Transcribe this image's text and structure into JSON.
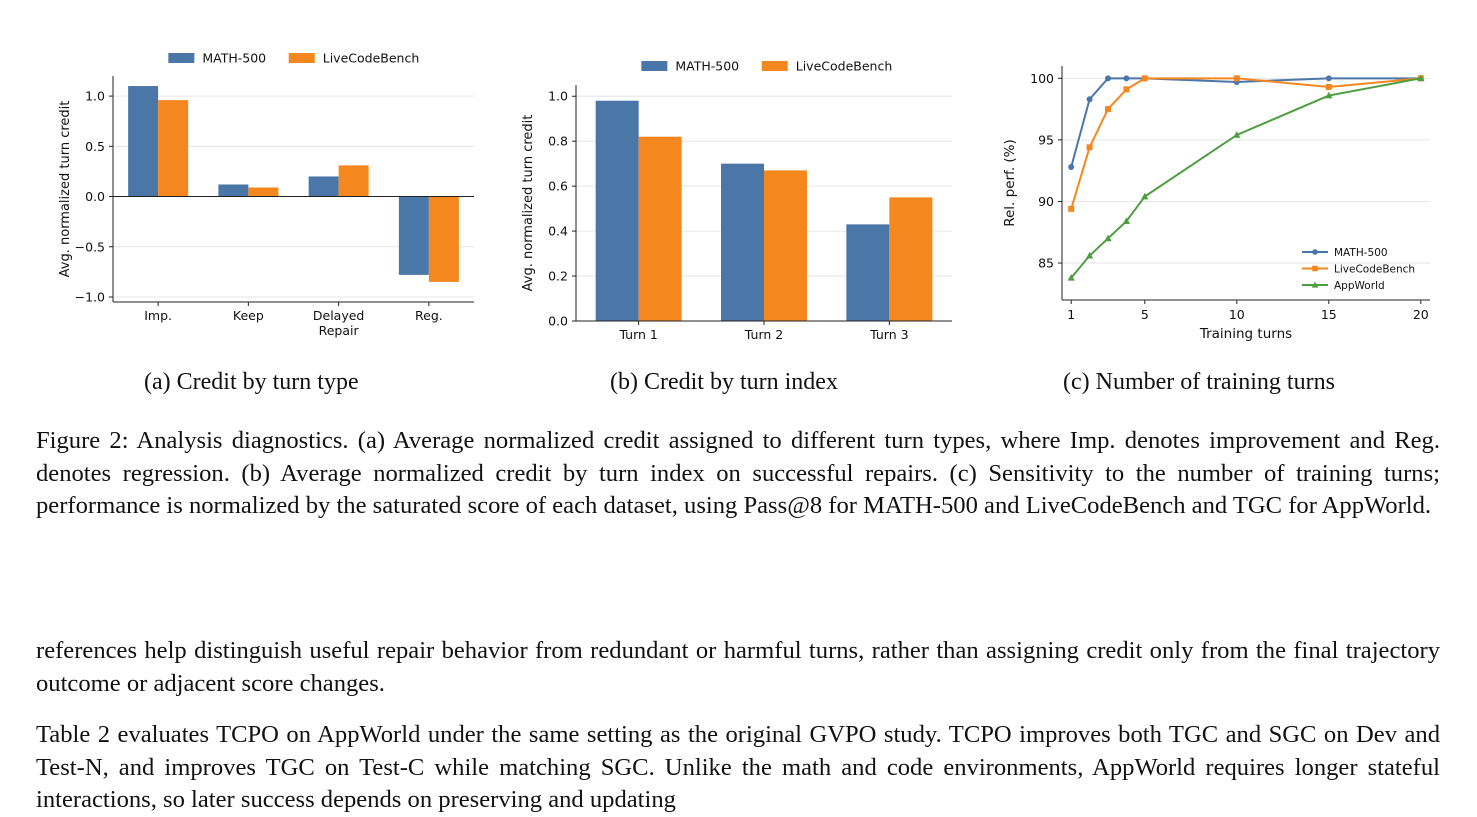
{
  "colors": {
    "math500": "#4a77a8",
    "livecodebench": "#f5871f",
    "appworld": "#4d9e3f",
    "grid": "#e6e6e6",
    "axis": "#222222"
  },
  "figure": {
    "caption": "Figure 2: Analysis diagnostics. (a) Average normalized credit assigned to different turn types, where Imp. denotes improvement and Reg. denotes regression. (b) Average normalized credit by turn index on successful repairs. (c) Sensitivity to the number of training turns; performance is normalized by the saturated score of each dataset, using Pass@8 for MATH-500 and LiveCodeBench and TGC for AppWorld.",
    "subcaptions": [
      "(a) Credit by turn type",
      "(b) Credit by turn index",
      "(c) Number of training turns"
    ]
  },
  "chart_data": [
    {
      "type": "bar",
      "categories": [
        "Imp.",
        "Keep",
        "Delayed\nRepair",
        "Reg."
      ],
      "series": [
        {
          "name": "MATH-500",
          "values": [
            1.1,
            0.12,
            0.2,
            -0.78
          ]
        },
        {
          "name": "LiveCodeBench",
          "values": [
            0.96,
            0.09,
            0.31,
            -0.85
          ]
        }
      ],
      "xlabel": "",
      "ylabel": "Avg. normalized turn credit",
      "ylim": [
        -1.05,
        1.2
      ],
      "yticks": [
        -1.0,
        -0.5,
        0.0,
        0.5,
        1.0
      ],
      "ytick_labels": [
        "−1.0",
        "−0.5",
        "0.0",
        "0.5",
        "1.0"
      ],
      "grid": "y",
      "legend": "top"
    },
    {
      "type": "bar",
      "categories": [
        "Turn 1",
        "Turn 2",
        "Turn 3"
      ],
      "series": [
        {
          "name": "MATH-500",
          "values": [
            0.98,
            0.7,
            0.43
          ]
        },
        {
          "name": "LiveCodeBench",
          "values": [
            0.82,
            0.67,
            0.55
          ]
        }
      ],
      "xlabel": "",
      "ylabel": "Avg. normalized turn credit",
      "ylim": [
        0.0,
        1.05
      ],
      "yticks": [
        0.0,
        0.2,
        0.4,
        0.6,
        0.8,
        1.0
      ],
      "ytick_labels": [
        "0.0",
        "0.2",
        "0.4",
        "0.6",
        "0.8",
        "1.0"
      ],
      "grid": "y",
      "legend": "top"
    },
    {
      "type": "line",
      "series": [
        {
          "name": "MATH-500",
          "marker": "circle",
          "x": [
            1,
            2,
            3,
            4,
            5,
            10,
            15,
            20
          ],
          "y": [
            92.8,
            98.3,
            100.0,
            100.0,
            100.0,
            99.7,
            100.0,
            100.0
          ]
        },
        {
          "name": "LiveCodeBench",
          "marker": "square",
          "x": [
            1,
            2,
            3,
            4,
            5,
            10,
            15,
            20
          ],
          "y": [
            89.4,
            94.4,
            97.5,
            99.1,
            100.0,
            100.0,
            99.3,
            100.0
          ]
        },
        {
          "name": "AppWorld",
          "marker": "triangle",
          "x": [
            1,
            2,
            3,
            4,
            5,
            10,
            15,
            20
          ],
          "y": [
            83.8,
            85.6,
            87.0,
            88.4,
            90.4,
            95.4,
            98.6,
            100.0
          ]
        }
      ],
      "xlabel": "Training turns",
      "ylabel": "Rel. perf. (%)",
      "xlim": [
        0.5,
        20.5
      ],
      "ylim": [
        82.0,
        101.0
      ],
      "xticks": [
        1,
        5,
        10,
        15,
        20
      ],
      "yticks": [
        85,
        90,
        95,
        100
      ],
      "grid": "y",
      "legend": "bottom-right"
    }
  ],
  "body": {
    "para1": "references help distinguish useful repair behavior from redundant or harmful turns, rather than assigning credit only from the final trajectory outcome or adjacent score changes.",
    "para2": "Table 2 evaluates TCPO on AppWorld under the same setting as the original GVPO study. TCPO improves both TGC and SGC on Dev and Test-N, and improves TGC on Test-C while matching SGC. Unlike the math and code environments, AppWorld requires longer stateful interactions, so later success depends on preserving and updating"
  }
}
